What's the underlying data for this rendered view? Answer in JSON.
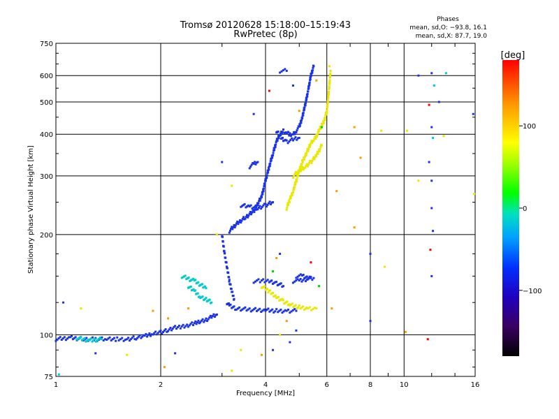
{
  "chart_data": {
    "type": "scatter",
    "title": "Tromsø 20120628 15:18:00–15:19:43",
    "subtitle": "RwPretec (8p)",
    "xlabel": "Frequency [MHz]",
    "ylabel": "Stationary phase Virtual Height [km]",
    "x_scale": "log",
    "y_scale": "log",
    "xlim": [
      1,
      16
    ],
    "ylim": [
      75,
      750
    ],
    "x_ticks": [
      1,
      2,
      4,
      6,
      8,
      10,
      16
    ],
    "x_tick_labels": [
      "1",
      "2",
      "4",
      "6",
      "8",
      "10",
      "16"
    ],
    "x_minor_ticks": [
      3,
      5,
      7,
      9,
      12,
      14
    ],
    "y_ticks": [
      75,
      100,
      200,
      300,
      400,
      500,
      600,
      750
    ],
    "y_tick_labels": [
      "75",
      "100",
      "200",
      "300",
      "400",
      "500",
      "600",
      "750"
    ],
    "grid": true,
    "phases_box": {
      "heading": "Phases",
      "line1": "mean, sd,O: −93.8, 16.1",
      "line2": "mean, sd,X:  87.7, 19.0"
    },
    "colorbar": {
      "label": "[deg]",
      "range": [
        -180,
        180
      ],
      "ticks": [
        100,
        0,
        -100
      ],
      "tick_labels": [
        "100",
        "0",
        "−100"
      ]
    },
    "series": [
      {
        "color": "#1a33e6",
        "phase_deg": -100,
        "trace_segments": [
          [
            [
              1.0,
              97
            ],
            [
              1.1,
              98
            ],
            [
              1.2,
              97
            ],
            [
              1.3,
              97
            ],
            [
              1.4,
              97
            ],
            [
              1.5,
              97
            ],
            [
              1.6,
              97
            ],
            [
              1.7,
              98
            ],
            [
              1.8,
              99
            ],
            [
              1.9,
              101
            ],
            [
              2.0,
              102
            ],
            [
              2.1,
              103
            ],
            [
              2.2,
              105
            ],
            [
              2.3,
              106
            ],
            [
              2.4,
              107
            ],
            [
              2.5,
              108
            ],
            [
              2.6,
              110
            ],
            [
              2.7,
              111
            ],
            [
              2.8,
              113
            ],
            [
              2.9,
              115
            ]
          ],
          [
            [
              3.1,
              125
            ],
            [
              3.15,
              122
            ],
            [
              3.3,
              120
            ],
            [
              3.6,
              119
            ],
            [
              4.0,
              118.5
            ],
            [
              4.3,
              118
            ],
            [
              4.6,
              118
            ],
            [
              4.9,
              118
            ]
          ],
          [
            [
              3.0,
              200
            ],
            [
              3.05,
              175
            ],
            [
              3.1,
              160
            ],
            [
              3.15,
              145
            ],
            [
              3.2,
              135
            ],
            [
              3.25,
              128
            ]
          ],
          [
            [
              3.15,
              205
            ],
            [
              3.3,
              215
            ],
            [
              3.5,
              225
            ],
            [
              3.7,
              235
            ],
            [
              3.9,
              260
            ],
            [
              4.0,
              290
            ],
            [
              4.1,
              320
            ],
            [
              4.2,
              350
            ],
            [
              4.3,
              380
            ],
            [
              4.4,
              400
            ],
            [
              4.5,
              410
            ],
            [
              4.6,
              405
            ],
            [
              4.7,
              398
            ],
            [
              4.8,
              400
            ],
            [
              4.9,
              410
            ],
            [
              5.0,
              420
            ],
            [
              5.1,
              450
            ],
            [
              5.2,
              490
            ],
            [
              5.3,
              540
            ],
            [
              5.4,
              600
            ],
            [
              5.5,
              640
            ]
          ],
          [
            [
              4.3,
              410
            ],
            [
              4.4,
              395
            ],
            [
              4.5,
              385
            ],
            [
              4.6,
              380
            ],
            [
              4.8,
              385
            ],
            [
              5.0,
              390
            ]
          ],
          [
            [
              3.4,
              245
            ],
            [
              3.6,
              242
            ],
            [
              3.8,
              240
            ],
            [
              4.0,
              245
            ],
            [
              4.2,
              250
            ]
          ],
          [
            [
              3.6,
              320
            ],
            [
              3.7,
              325
            ],
            [
              3.8,
              330
            ]
          ],
          [
            [
              4.4,
              620
            ],
            [
              4.6,
              620
            ]
          ],
          [
            [
              3.7,
              145
            ],
            [
              3.9,
              145
            ],
            [
              4.1,
              145
            ],
            [
              4.3,
              143
            ],
            [
              4.5,
              140
            ]
          ],
          [
            [
              4.9,
              150
            ],
            [
              5.1,
              150
            ],
            [
              5.3,
              148
            ],
            [
              5.5,
              148
            ]
          ],
          [
            [
              4.8,
              145
            ],
            [
              5.0,
              145
            ],
            [
              5.4,
              148
            ]
          ]
        ]
      },
      {
        "color": "#e8e800",
        "phase_deg": 100,
        "trace_segments": [
          [
            [
              4.6,
              240
            ],
            [
              4.7,
              255
            ],
            [
              4.8,
              270
            ],
            [
              4.9,
              290
            ],
            [
              5.0,
              310
            ],
            [
              5.1,
              330
            ],
            [
              5.2,
              345
            ],
            [
              5.3,
              360
            ],
            [
              5.4,
              375
            ],
            [
              5.5,
              385
            ],
            [
              5.6,
              395
            ],
            [
              5.7,
              410
            ],
            [
              5.8,
              425
            ],
            [
              5.9,
              440
            ],
            [
              6.0,
              470
            ],
            [
              6.05,
              510
            ],
            [
              6.1,
              560
            ],
            [
              6.15,
              620
            ]
          ],
          [
            [
              4.8,
              300
            ],
            [
              5.0,
              310
            ],
            [
              5.2,
              320
            ],
            [
              5.4,
              330
            ],
            [
              5.6,
              345
            ],
            [
              5.8,
              370
            ]
          ],
          [
            [
              3.9,
              140
            ],
            [
              4.1,
              135
            ],
            [
              4.3,
              130
            ],
            [
              4.5,
              126
            ],
            [
              4.7,
              123
            ],
            [
              5.0,
              121
            ],
            [
              5.3,
              120
            ],
            [
              5.6,
              120
            ]
          ]
        ]
      },
      {
        "color": "#00cccc",
        "phase_deg": -50,
        "trace_segments": [
          [
            [
              1.15,
              98
            ],
            [
              1.25,
              96
            ],
            [
              1.35,
              97
            ]
          ],
          [
            [
              2.4,
              140
            ],
            [
              2.5,
              135
            ],
            [
              2.6,
              130
            ],
            [
              2.7,
              128
            ],
            [
              2.8,
              125
            ]
          ],
          [
            [
              2.3,
              150
            ],
            [
              2.5,
              145
            ],
            [
              2.7,
              138
            ]
          ]
        ]
      }
    ],
    "scatter_points": [
      {
        "x": 11.0,
        "y": 600,
        "color": "#1a33e6"
      },
      {
        "x": 12.0,
        "y": 610,
        "color": "#1a33e6"
      },
      {
        "x": 12.2,
        "y": 560,
        "color": "#00cccc"
      },
      {
        "x": 11.8,
        "y": 490,
        "color": "#ff0000"
      },
      {
        "x": 12.0,
        "y": 420,
        "color": "#1a33e6"
      },
      {
        "x": 12.1,
        "y": 390,
        "color": "#00cccc"
      },
      {
        "x": 11.8,
        "y": 330,
        "color": "#1a33e6"
      },
      {
        "x": 12.0,
        "y": 290,
        "color": "#1a33e6"
      },
      {
        "x": 12.0,
        "y": 240,
        "color": "#1a33e6"
      },
      {
        "x": 12.1,
        "y": 205,
        "color": "#1a33e6"
      },
      {
        "x": 11.9,
        "y": 180,
        "color": "#ff0000"
      },
      {
        "x": 12.0,
        "y": 150,
        "color": "#1a33e6"
      },
      {
        "x": 11.7,
        "y": 97,
        "color": "#ff0000"
      },
      {
        "x": 13.2,
        "y": 610,
        "color": "#00cccc"
      },
      {
        "x": 12.6,
        "y": 500,
        "color": "#1a33e6"
      },
      {
        "x": 15.8,
        "y": 460,
        "color": "#1a33e6"
      },
      {
        "x": 15.9,
        "y": 265,
        "color": "#e8e800"
      },
      {
        "x": 13.0,
        "y": 395,
        "color": "#e8e800"
      },
      {
        "x": 11.0,
        "y": 290,
        "color": "#e8e800"
      },
      {
        "x": 10.2,
        "y": 410,
        "color": "#e8e800"
      },
      {
        "x": 10.1,
        "y": 102,
        "color": "#ff9900"
      },
      {
        "x": 8.0,
        "y": 110,
        "color": "#1a33e6"
      },
      {
        "x": 8.6,
        "y": 410,
        "color": "#e8e800"
      },
      {
        "x": 7.2,
        "y": 420,
        "color": "#ff9900"
      },
      {
        "x": 7.5,
        "y": 340,
        "color": "#ff9900"
      },
      {
        "x": 7.2,
        "y": 210,
        "color": "#ff9900"
      },
      {
        "x": 6.4,
        "y": 270,
        "color": "#ff9900"
      },
      {
        "x": 8.0,
        "y": 175,
        "color": "#1a33e6"
      },
      {
        "x": 8.8,
        "y": 160,
        "color": "#e8e800"
      },
      {
        "x": 6.2,
        "y": 120,
        "color": "#ff9900"
      },
      {
        "x": 3.0,
        "y": 330,
        "color": "#1a33e6"
      },
      {
        "x": 3.2,
        "y": 280,
        "color": "#e8e800"
      },
      {
        "x": 2.9,
        "y": 200,
        "color": "#e8e800"
      },
      {
        "x": 3.7,
        "y": 460,
        "color": "#1a33e6"
      },
      {
        "x": 3.4,
        "y": 90,
        "color": "#e8e800"
      },
      {
        "x": 2.4,
        "y": 120,
        "color": "#ff9900"
      },
      {
        "x": 1.9,
        "y": 118,
        "color": "#ff9900"
      },
      {
        "x": 2.1,
        "y": 112,
        "color": "#ff9900"
      },
      {
        "x": 1.05,
        "y": 125,
        "color": "#1a33e6"
      },
      {
        "x": 1.18,
        "y": 120,
        "color": "#e8e800"
      },
      {
        "x": 1.6,
        "y": 87,
        "color": "#e8e800"
      },
      {
        "x": 1.3,
        "y": 88,
        "color": "#1a33e6"
      },
      {
        "x": 2.2,
        "y": 88,
        "color": "#1a33e6"
      },
      {
        "x": 3.2,
        "y": 78,
        "color": "#e8e800"
      },
      {
        "x": 4.2,
        "y": 90,
        "color": "#1a33e6"
      },
      {
        "x": 4.4,
        "y": 100,
        "color": "#e8e800"
      },
      {
        "x": 4.6,
        "y": 110,
        "color": "#ff9900"
      },
      {
        "x": 4.7,
        "y": 95,
        "color": "#1a33e6"
      },
      {
        "x": 4.9,
        "y": 103,
        "color": "#1a33e6"
      },
      {
        "x": 3.9,
        "y": 87,
        "color": "#ff9900"
      },
      {
        "x": 2.05,
        "y": 80,
        "color": "#ff9900"
      },
      {
        "x": 1.02,
        "y": 76,
        "color": "#00cccc"
      },
      {
        "x": 4.3,
        "y": 170,
        "color": "#ff9900"
      },
      {
        "x": 4.4,
        "y": 175,
        "color": "#1a33e6"
      },
      {
        "x": 4.2,
        "y": 155,
        "color": "#00cc00"
      },
      {
        "x": 5.4,
        "y": 165,
        "color": "#ff0000"
      },
      {
        "x": 5.7,
        "y": 140,
        "color": "#00cc00"
      },
      {
        "x": 5.6,
        "y": 580,
        "color": "#ff9900"
      },
      {
        "x": 4.8,
        "y": 560,
        "color": "#1a33e6"
      },
      {
        "x": 5.0,
        "y": 470,
        "color": "#ff9900"
      },
      {
        "x": 4.1,
        "y": 540,
        "color": "#ff0000"
      },
      {
        "x": 5.8,
        "y": 420,
        "color": "#00cc00"
      },
      {
        "x": 6.1,
        "y": 640,
        "color": "#e8e800"
      }
    ]
  }
}
